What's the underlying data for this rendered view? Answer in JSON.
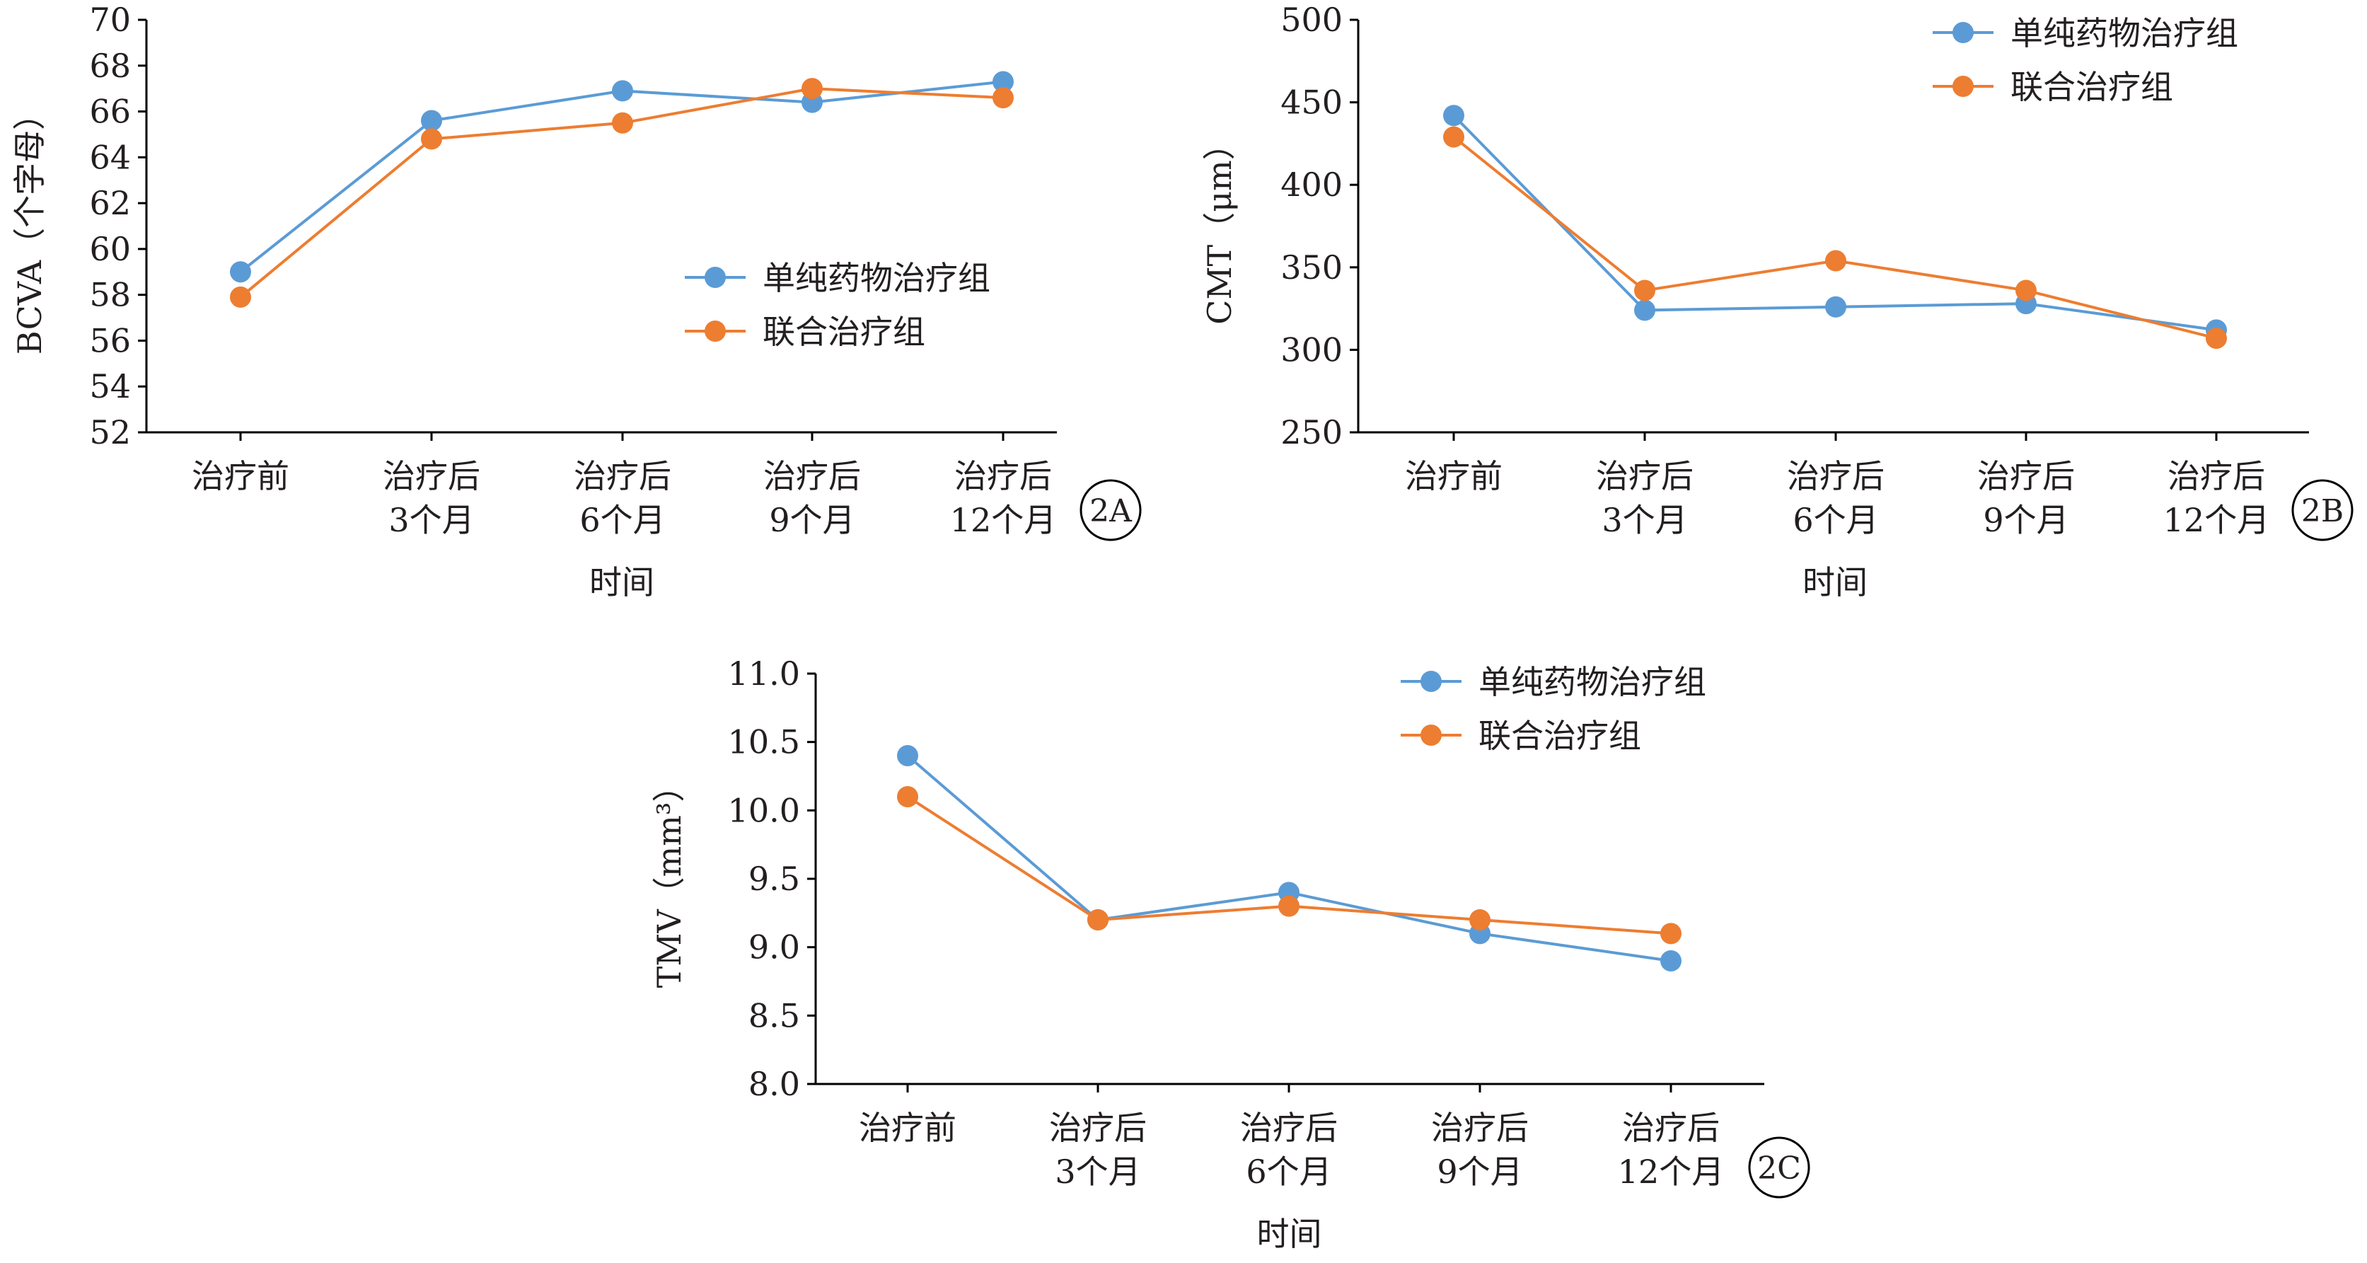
{
  "colors": {
    "series_a": "#5b9bd5",
    "series_b": "#ed7d31",
    "axis": "#000000",
    "text": "#231f20"
  },
  "chart_data": [
    {
      "panel_label": "2A",
      "type": "line",
      "categories": [
        "治疗前",
        "治疗后\n3个月",
        "治疗后\n6个月",
        "治疗后\n9个月",
        "治疗后\n12个月"
      ],
      "xlabel": "时间",
      "ylabel": "BCVA（个字母）",
      "ylim": [
        52,
        70
      ],
      "yticks": [
        "52",
        "54",
        "56",
        "58",
        "60",
        "62",
        "64",
        "66",
        "68",
        "70"
      ],
      "grid": false,
      "legend_position": "right",
      "series": [
        {
          "name": "单纯药物治疗组",
          "values": [
            59.0,
            65.6,
            66.9,
            66.4,
            67.3
          ]
        },
        {
          "name": "联合治疗组",
          "values": [
            57.9,
            64.8,
            65.5,
            67.0,
            66.6
          ]
        }
      ]
    },
    {
      "panel_label": "2B",
      "type": "line",
      "categories": [
        "治疗前",
        "治疗后\n3个月",
        "治疗后\n6个月",
        "治疗后\n9个月",
        "治疗后\n12个月"
      ],
      "xlabel": "时间",
      "ylabel": "CMT（μm）",
      "ylim": [
        250,
        500
      ],
      "yticks": [
        "250",
        "300",
        "350",
        "400",
        "450",
        "500"
      ],
      "grid": false,
      "legend_position": "top-right",
      "series": [
        {
          "name": "单纯药物治疗组",
          "values": [
            442,
            324,
            326,
            328,
            312
          ]
        },
        {
          "name": "联合治疗组",
          "values": [
            429,
            336,
            354,
            336,
            307
          ]
        }
      ]
    },
    {
      "panel_label": "2C",
      "type": "line",
      "categories": [
        "治疗前",
        "治疗后\n3个月",
        "治疗后\n6个月",
        "治疗后\n9个月",
        "治疗后\n12个月"
      ],
      "xlabel": "时间",
      "ylabel": "TMV（mm³）",
      "ylim": [
        8.0,
        11.0
      ],
      "yticks": [
        "8.0",
        "8.5",
        "9.0",
        "9.5",
        "10.0",
        "10.5",
        "11.0"
      ],
      "grid": false,
      "legend_position": "top-right",
      "series": [
        {
          "name": "单纯药物治疗组",
          "values": [
            10.4,
            9.2,
            9.4,
            9.1,
            8.9
          ]
        },
        {
          "name": "联合治疗组",
          "values": [
            10.1,
            9.2,
            9.3,
            9.2,
            9.1
          ]
        }
      ]
    }
  ]
}
